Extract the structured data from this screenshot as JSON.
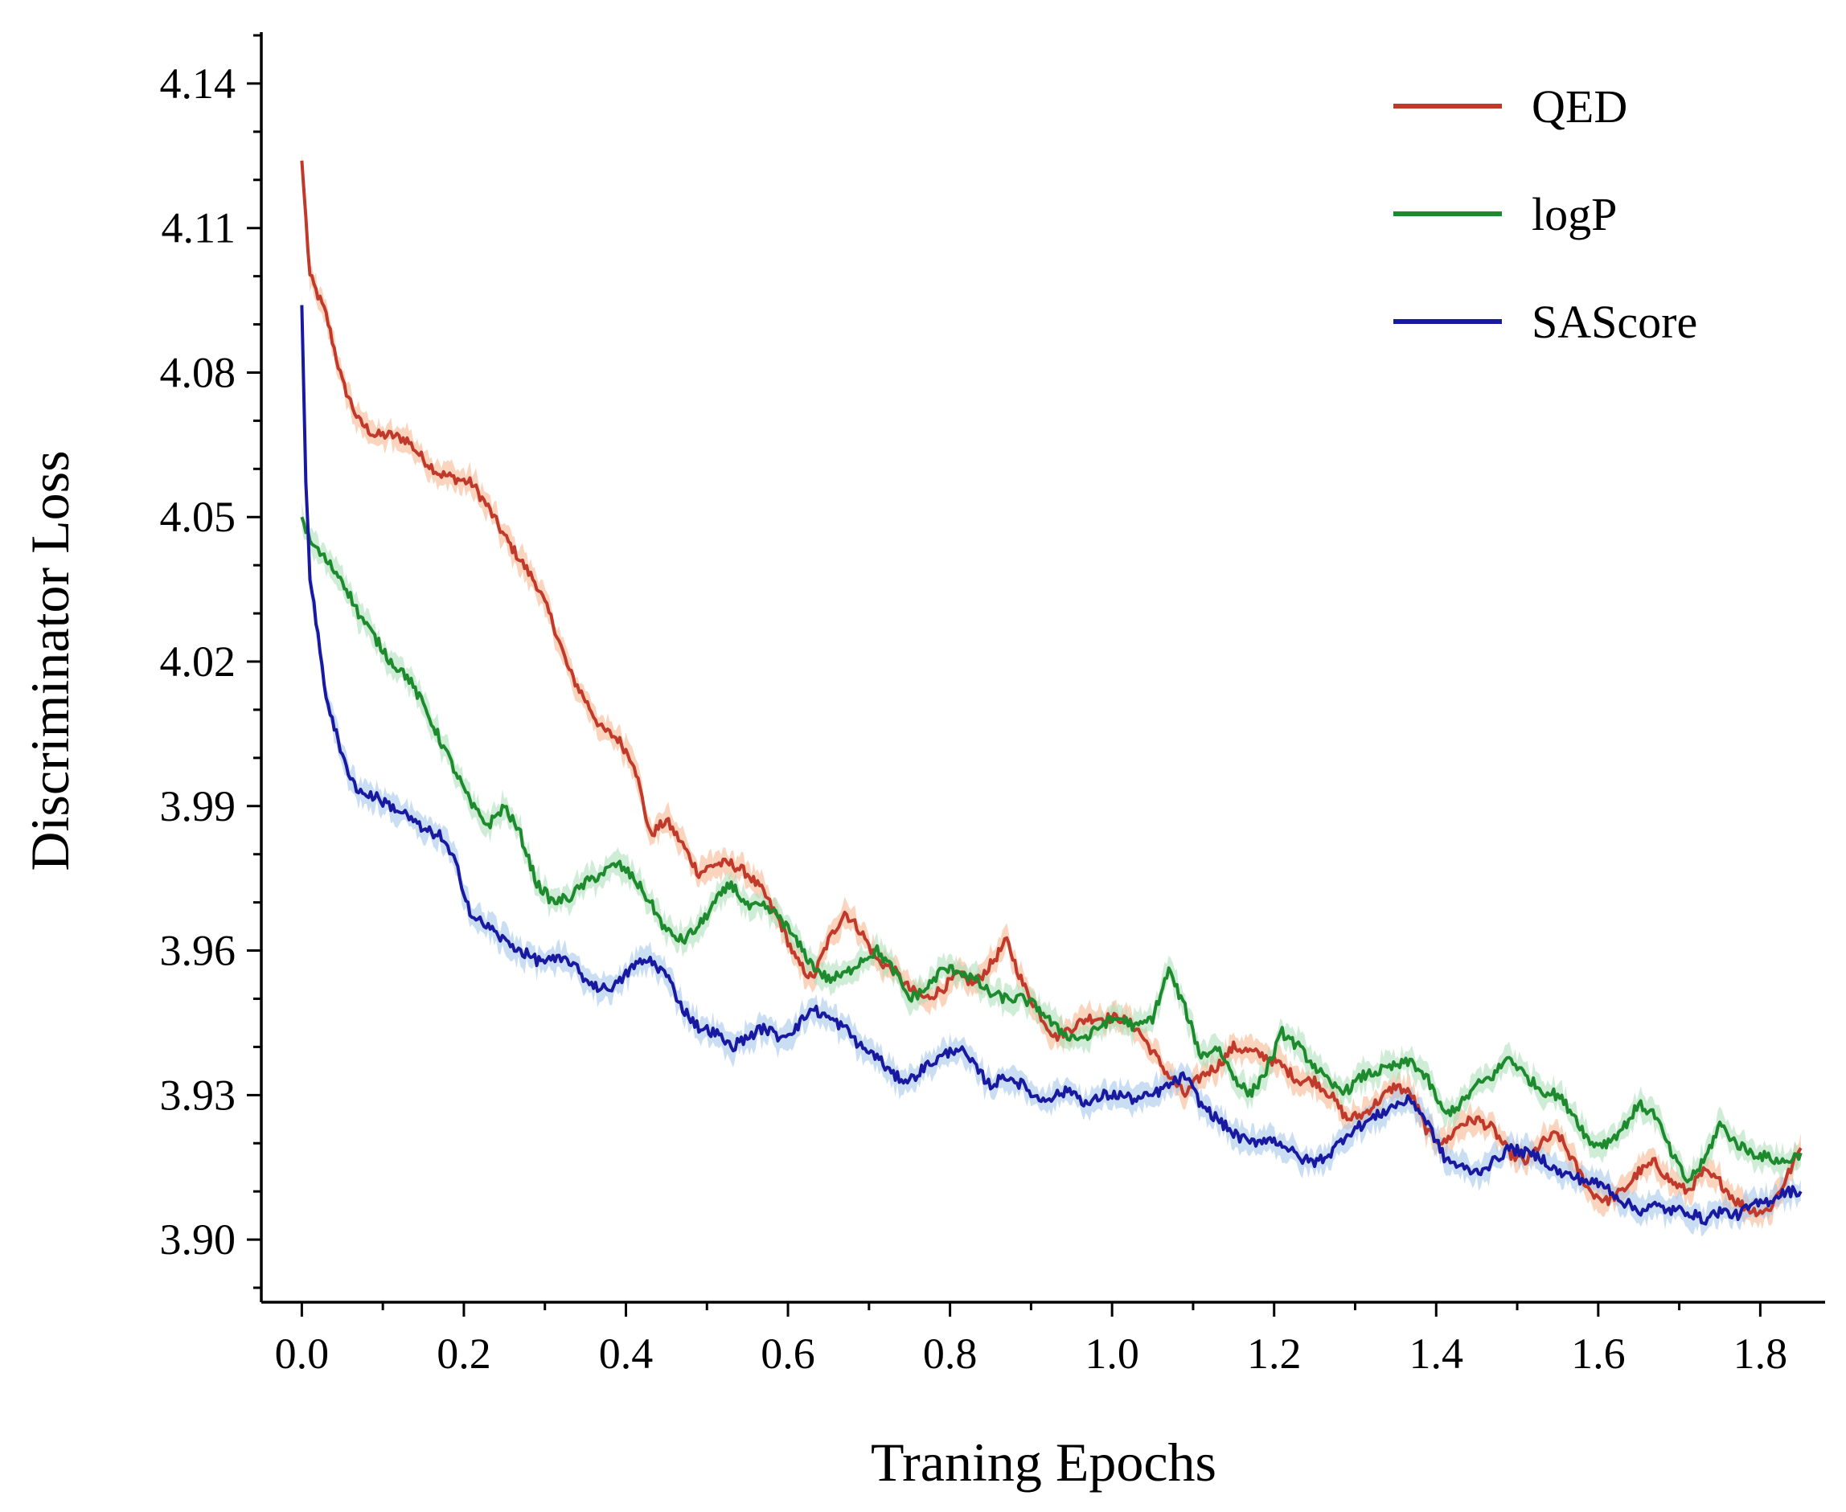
{
  "chart_data": {
    "type": "line",
    "title": "",
    "xlabel": "Traning Epochs",
    "ylabel": "Discriminator Loss",
    "xlim": [
      -0.05,
      1.88
    ],
    "ylim": [
      3.887,
      4.149
    ],
    "x_ticks": [
      "0.0",
      "0.2",
      "0.4",
      "0.6",
      "0.8",
      "1.0",
      "1.2",
      "1.4",
      "1.6",
      "1.8"
    ],
    "x_tick_values": [
      0.0,
      0.2,
      0.4,
      0.6,
      0.8,
      1.0,
      1.2,
      1.4,
      1.6,
      1.8
    ],
    "y_ticks": [
      "3.90",
      "3.93",
      "3.96",
      "3.99",
      "4.02",
      "4.05",
      "4.08",
      "4.11",
      "4.14"
    ],
    "y_tick_values": [
      3.9,
      3.93,
      3.96,
      3.99,
      4.02,
      4.05,
      4.08,
      4.11,
      4.14
    ],
    "grid": false,
    "legend_position": "top-right",
    "series": [
      {
        "name": "QED",
        "color": "#c0392b",
        "band_color": "#f7b189",
        "points": [
          [
            0.0,
            4.124
          ],
          [
            0.01,
            4.1
          ],
          [
            0.03,
            4.092
          ],
          [
            0.05,
            4.078
          ],
          [
            0.07,
            4.07
          ],
          [
            0.09,
            4.067
          ],
          [
            0.11,
            4.067
          ],
          [
            0.13,
            4.066
          ],
          [
            0.15,
            4.062
          ],
          [
            0.17,
            4.059
          ],
          [
            0.19,
            4.058
          ],
          [
            0.21,
            4.057
          ],
          [
            0.23,
            4.052
          ],
          [
            0.25,
            4.046
          ],
          [
            0.27,
            4.041
          ],
          [
            0.29,
            4.036
          ],
          [
            0.31,
            4.028
          ],
          [
            0.33,
            4.018
          ],
          [
            0.35,
            4.012
          ],
          [
            0.37,
            4.006
          ],
          [
            0.39,
            4.004
          ],
          [
            0.41,
            3.999
          ],
          [
            0.43,
            3.984
          ],
          [
            0.45,
            3.987
          ],
          [
            0.47,
            3.982
          ],
          [
            0.49,
            3.976
          ],
          [
            0.51,
            3.978
          ],
          [
            0.53,
            3.978
          ],
          [
            0.55,
            3.976
          ],
          [
            0.57,
            3.972
          ],
          [
            0.59,
            3.966
          ],
          [
            0.61,
            3.958
          ],
          [
            0.63,
            3.954
          ],
          [
            0.65,
            3.962
          ],
          [
            0.67,
            3.968
          ],
          [
            0.69,
            3.964
          ],
          [
            0.71,
            3.958
          ],
          [
            0.73,
            3.956
          ],
          [
            0.75,
            3.952
          ],
          [
            0.77,
            3.95
          ],
          [
            0.79,
            3.952
          ],
          [
            0.81,
            3.955
          ],
          [
            0.83,
            3.953
          ],
          [
            0.85,
            3.957
          ],
          [
            0.87,
            3.962
          ],
          [
            0.89,
            3.953
          ],
          [
            0.91,
            3.947
          ],
          [
            0.93,
            3.942
          ],
          [
            0.95,
            3.944
          ],
          [
            0.97,
            3.946
          ],
          [
            0.99,
            3.946
          ],
          [
            1.01,
            3.946
          ],
          [
            1.03,
            3.944
          ],
          [
            1.05,
            3.939
          ],
          [
            1.07,
            3.934
          ],
          [
            1.09,
            3.93
          ],
          [
            1.11,
            3.934
          ],
          [
            1.13,
            3.936
          ],
          [
            1.15,
            3.94
          ],
          [
            1.17,
            3.939
          ],
          [
            1.19,
            3.938
          ],
          [
            1.21,
            3.936
          ],
          [
            1.23,
            3.933
          ],
          [
            1.25,
            3.933
          ],
          [
            1.27,
            3.93
          ],
          [
            1.29,
            3.925
          ],
          [
            1.31,
            3.926
          ],
          [
            1.33,
            3.929
          ],
          [
            1.35,
            3.932
          ],
          [
            1.37,
            3.93
          ],
          [
            1.39,
            3.922
          ],
          [
            1.41,
            3.92
          ],
          [
            1.43,
            3.924
          ],
          [
            1.45,
            3.925
          ],
          [
            1.47,
            3.923
          ],
          [
            1.49,
            3.918
          ],
          [
            1.51,
            3.916
          ],
          [
            1.53,
            3.92
          ],
          [
            1.55,
            3.922
          ],
          [
            1.57,
            3.916
          ],
          [
            1.59,
            3.91
          ],
          [
            1.61,
            3.908
          ],
          [
            1.63,
            3.91
          ],
          [
            1.65,
            3.914
          ],
          [
            1.67,
            3.916
          ],
          [
            1.69,
            3.912
          ],
          [
            1.71,
            3.91
          ],
          [
            1.73,
            3.914
          ],
          [
            1.75,
            3.912
          ],
          [
            1.77,
            3.908
          ],
          [
            1.79,
            3.906
          ],
          [
            1.81,
            3.906
          ],
          [
            1.83,
            3.912
          ],
          [
            1.85,
            3.919
          ]
        ]
      },
      {
        "name": "logP",
        "color": "#1e8a2e",
        "band_color": "#a8dfb4",
        "points": [
          [
            0.0,
            4.05
          ],
          [
            0.01,
            4.045
          ],
          [
            0.03,
            4.041
          ],
          [
            0.05,
            4.037
          ],
          [
            0.07,
            4.03
          ],
          [
            0.09,
            4.025
          ],
          [
            0.11,
            4.02
          ],
          [
            0.13,
            4.017
          ],
          [
            0.15,
            4.011
          ],
          [
            0.17,
            4.004
          ],
          [
            0.19,
            3.997
          ],
          [
            0.21,
            3.99
          ],
          [
            0.23,
            3.986
          ],
          [
            0.25,
            3.99
          ],
          [
            0.27,
            3.984
          ],
          [
            0.29,
            3.974
          ],
          [
            0.31,
            3.97
          ],
          [
            0.33,
            3.971
          ],
          [
            0.35,
            3.974
          ],
          [
            0.37,
            3.976
          ],
          [
            0.39,
            3.978
          ],
          [
            0.41,
            3.975
          ],
          [
            0.43,
            3.97
          ],
          [
            0.45,
            3.964
          ],
          [
            0.47,
            3.962
          ],
          [
            0.49,
            3.965
          ],
          [
            0.51,
            3.97
          ],
          [
            0.53,
            3.974
          ],
          [
            0.55,
            3.969
          ],
          [
            0.57,
            3.969
          ],
          [
            0.59,
            3.967
          ],
          [
            0.61,
            3.962
          ],
          [
            0.63,
            3.957
          ],
          [
            0.65,
            3.954
          ],
          [
            0.67,
            3.955
          ],
          [
            0.69,
            3.958
          ],
          [
            0.71,
            3.96
          ],
          [
            0.73,
            3.956
          ],
          [
            0.75,
            3.95
          ],
          [
            0.77,
            3.952
          ],
          [
            0.79,
            3.956
          ],
          [
            0.81,
            3.956
          ],
          [
            0.83,
            3.954
          ],
          [
            0.85,
            3.951
          ],
          [
            0.87,
            3.95
          ],
          [
            0.89,
            3.95
          ],
          [
            0.91,
            3.948
          ],
          [
            0.93,
            3.944
          ],
          [
            0.95,
            3.942
          ],
          [
            0.97,
            3.942
          ],
          [
            0.99,
            3.945
          ],
          [
            1.01,
            3.946
          ],
          [
            1.03,
            3.944
          ],
          [
            1.05,
            3.946
          ],
          [
            1.07,
            3.956
          ],
          [
            1.09,
            3.948
          ],
          [
            1.11,
            3.938
          ],
          [
            1.13,
            3.94
          ],
          [
            1.15,
            3.934
          ],
          [
            1.17,
            3.93
          ],
          [
            1.19,
            3.935
          ],
          [
            1.21,
            3.943
          ],
          [
            1.23,
            3.94
          ],
          [
            1.25,
            3.936
          ],
          [
            1.27,
            3.932
          ],
          [
            1.29,
            3.931
          ],
          [
            1.31,
            3.934
          ],
          [
            1.33,
            3.935
          ],
          [
            1.35,
            3.936
          ],
          [
            1.37,
            3.937
          ],
          [
            1.39,
            3.933
          ],
          [
            1.41,
            3.926
          ],
          [
            1.43,
            3.928
          ],
          [
            1.45,
            3.932
          ],
          [
            1.47,
            3.934
          ],
          [
            1.49,
            3.938
          ],
          [
            1.51,
            3.934
          ],
          [
            1.53,
            3.931
          ],
          [
            1.55,
            3.93
          ],
          [
            1.57,
            3.926
          ],
          [
            1.59,
            3.92
          ],
          [
            1.61,
            3.92
          ],
          [
            1.63,
            3.923
          ],
          [
            1.65,
            3.928
          ],
          [
            1.67,
            3.926
          ],
          [
            1.69,
            3.918
          ],
          [
            1.71,
            3.912
          ],
          [
            1.73,
            3.916
          ],
          [
            1.75,
            3.924
          ],
          [
            1.77,
            3.92
          ],
          [
            1.79,
            3.918
          ],
          [
            1.81,
            3.917
          ],
          [
            1.83,
            3.916
          ],
          [
            1.85,
            3.918
          ]
        ]
      },
      {
        "name": "SAScore",
        "color": "#1818a0",
        "band_color": "#9fc3ea",
        "points": [
          [
            0.0,
            4.094
          ],
          [
            0.005,
            4.058
          ],
          [
            0.01,
            4.038
          ],
          [
            0.02,
            4.025
          ],
          [
            0.03,
            4.013
          ],
          [
            0.05,
            4.0
          ],
          [
            0.07,
            3.993
          ],
          [
            0.09,
            3.992
          ],
          [
            0.11,
            3.99
          ],
          [
            0.13,
            3.988
          ],
          [
            0.15,
            3.985
          ],
          [
            0.17,
            3.984
          ],
          [
            0.19,
            3.978
          ],
          [
            0.21,
            3.967
          ],
          [
            0.23,
            3.965
          ],
          [
            0.25,
            3.962
          ],
          [
            0.27,
            3.96
          ],
          [
            0.29,
            3.958
          ],
          [
            0.31,
            3.958
          ],
          [
            0.33,
            3.958
          ],
          [
            0.35,
            3.954
          ],
          [
            0.37,
            3.952
          ],
          [
            0.39,
            3.953
          ],
          [
            0.41,
            3.957
          ],
          [
            0.43,
            3.958
          ],
          [
            0.45,
            3.955
          ],
          [
            0.47,
            3.948
          ],
          [
            0.49,
            3.944
          ],
          [
            0.51,
            3.943
          ],
          [
            0.53,
            3.94
          ],
          [
            0.55,
            3.942
          ],
          [
            0.57,
            3.944
          ],
          [
            0.59,
            3.942
          ],
          [
            0.61,
            3.944
          ],
          [
            0.63,
            3.948
          ],
          [
            0.65,
            3.946
          ],
          [
            0.67,
            3.944
          ],
          [
            0.69,
            3.94
          ],
          [
            0.71,
            3.938
          ],
          [
            0.73,
            3.934
          ],
          [
            0.75,
            3.933
          ],
          [
            0.77,
            3.936
          ],
          [
            0.79,
            3.938
          ],
          [
            0.81,
            3.94
          ],
          [
            0.83,
            3.936
          ],
          [
            0.85,
            3.932
          ],
          [
            0.87,
            3.934
          ],
          [
            0.89,
            3.932
          ],
          [
            0.91,
            3.929
          ],
          [
            0.93,
            3.93
          ],
          [
            0.95,
            3.931
          ],
          [
            0.97,
            3.928
          ],
          [
            0.99,
            3.93
          ],
          [
            1.01,
            3.93
          ],
          [
            1.03,
            3.929
          ],
          [
            1.05,
            3.93
          ],
          [
            1.07,
            3.932
          ],
          [
            1.09,
            3.934
          ],
          [
            1.11,
            3.928
          ],
          [
            1.13,
            3.925
          ],
          [
            1.15,
            3.922
          ],
          [
            1.17,
            3.92
          ],
          [
            1.19,
            3.921
          ],
          [
            1.21,
            3.92
          ],
          [
            1.23,
            3.917
          ],
          [
            1.25,
            3.916
          ],
          [
            1.27,
            3.918
          ],
          [
            1.29,
            3.922
          ],
          [
            1.31,
            3.924
          ],
          [
            1.33,
            3.926
          ],
          [
            1.35,
            3.928
          ],
          [
            1.37,
            3.929
          ],
          [
            1.39,
            3.924
          ],
          [
            1.41,
            3.917
          ],
          [
            1.43,
            3.915
          ],
          [
            1.45,
            3.914
          ],
          [
            1.47,
            3.916
          ],
          [
            1.49,
            3.919
          ],
          [
            1.51,
            3.918
          ],
          [
            1.53,
            3.917
          ],
          [
            1.55,
            3.914
          ],
          [
            1.57,
            3.913
          ],
          [
            1.59,
            3.912
          ],
          [
            1.61,
            3.911
          ],
          [
            1.63,
            3.908
          ],
          [
            1.65,
            3.906
          ],
          [
            1.67,
            3.907
          ],
          [
            1.69,
            3.906
          ],
          [
            1.71,
            3.906
          ],
          [
            1.73,
            3.904
          ],
          [
            1.75,
            3.906
          ],
          [
            1.77,
            3.905
          ],
          [
            1.79,
            3.907
          ],
          [
            1.81,
            3.908
          ],
          [
            1.83,
            3.91
          ],
          [
            1.85,
            3.91
          ]
        ]
      }
    ]
  }
}
